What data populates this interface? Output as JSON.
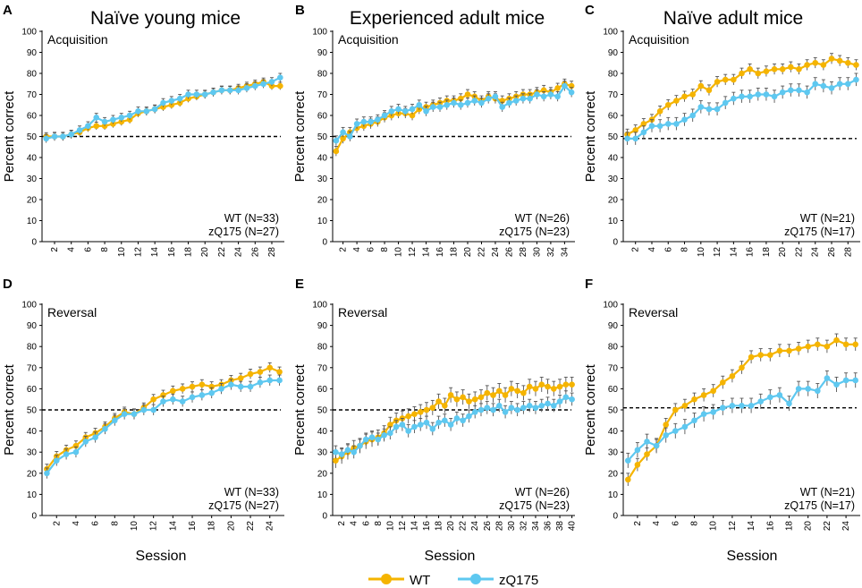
{
  "figure": {
    "column_titles": [
      "Naïve young mice",
      "Experienced adult mice",
      "Naïve adult mice"
    ],
    "xlabel": "Session",
    "legend": [
      {
        "label": "WT",
        "color": "#f5b400"
      },
      {
        "label": "zQ175",
        "color": "#5ec8f0"
      }
    ]
  },
  "colors": {
    "wt": "#f5b400",
    "zq": "#5ec8f0",
    "chance": "#000000"
  },
  "chart_data": [
    {
      "panel": "A",
      "type": "line",
      "phase": "Acquisition",
      "ylabel": "Percent correct",
      "ylim": [
        0,
        100
      ],
      "yticks": [
        0,
        10,
        20,
        30,
        40,
        50,
        60,
        70,
        80,
        90,
        100
      ],
      "xlim": [
        0.5,
        29.5
      ],
      "xticks": [
        2,
        4,
        6,
        8,
        10,
        12,
        14,
        16,
        18,
        20,
        22,
        24,
        26,
        28
      ],
      "chance": 50,
      "legend_text": [
        "WT (N=33)",
        "zQ175 (N=27)"
      ],
      "series": [
        {
          "name": "WT",
          "x": [
            1,
            2,
            3,
            4,
            5,
            6,
            7,
            8,
            9,
            10,
            11,
            12,
            13,
            14,
            15,
            16,
            17,
            18,
            19,
            20,
            21,
            22,
            23,
            24,
            25,
            26,
            27,
            28,
            29
          ],
          "values": [
            50,
            50,
            50,
            51,
            52,
            54,
            55,
            55,
            56,
            57,
            58,
            61,
            62,
            63,
            64,
            65,
            66,
            68,
            69,
            70,
            71,
            72,
            72,
            73,
            74,
            75,
            76,
            74,
            74
          ],
          "err": 1.8
        },
        {
          "name": "zQ175",
          "x": [
            1,
            2,
            3,
            4,
            5,
            6,
            7,
            8,
            9,
            10,
            11,
            12,
            13,
            14,
            15,
            16,
            17,
            18,
            19,
            20,
            21,
            22,
            23,
            24,
            25,
            26,
            27,
            28,
            29
          ],
          "values": [
            49,
            50,
            50,
            51,
            53,
            55,
            59,
            57,
            58,
            59,
            60,
            62,
            62,
            63,
            66,
            67,
            68,
            70,
            70,
            70,
            71,
            72,
            72,
            72,
            73,
            74,
            75,
            76,
            78
          ],
          "err": 2.0
        }
      ]
    },
    {
      "panel": "B",
      "type": "line",
      "phase": "Acquisition",
      "ylabel": "Percent correct",
      "ylim": [
        0,
        100
      ],
      "yticks": [
        0,
        10,
        20,
        30,
        40,
        50,
        60,
        70,
        80,
        90,
        100
      ],
      "xlim": [
        0.5,
        35.5
      ],
      "xticks": [
        2,
        4,
        6,
        8,
        10,
        12,
        14,
        16,
        18,
        20,
        22,
        24,
        26,
        28,
        30,
        32,
        34
      ],
      "chance": 50,
      "legend_text": [
        "WT (N=26)",
        "zQ175 (N=23)"
      ],
      "series": [
        {
          "name": "WT",
          "x": [
            1,
            2,
            3,
            4,
            5,
            6,
            7,
            8,
            9,
            10,
            11,
            12,
            13,
            14,
            15,
            16,
            17,
            18,
            19,
            20,
            21,
            22,
            23,
            24,
            25,
            26,
            27,
            28,
            29,
            30,
            31,
            32,
            33,
            34,
            35
          ],
          "values": [
            43,
            49,
            52,
            54,
            55,
            56,
            57,
            59,
            60,
            61,
            61,
            60,
            63,
            64,
            65,
            66,
            67,
            67,
            68,
            70,
            69,
            67,
            69,
            68,
            67,
            68,
            69,
            70,
            70,
            71,
            72,
            71,
            73,
            75,
            74
          ],
          "err": 2.3
        },
        {
          "name": "zQ175",
          "x": [
            1,
            2,
            3,
            4,
            5,
            6,
            7,
            8,
            9,
            10,
            11,
            12,
            13,
            14,
            15,
            16,
            17,
            18,
            19,
            20,
            21,
            22,
            23,
            24,
            25,
            26,
            27,
            28,
            29,
            30,
            31,
            32,
            33,
            34,
            35
          ],
          "values": [
            48,
            52,
            50,
            56,
            57,
            57,
            58,
            60,
            62,
            63,
            62,
            63,
            65,
            62,
            64,
            64,
            65,
            66,
            65,
            66,
            67,
            66,
            68,
            69,
            64,
            66,
            67,
            68,
            68,
            70,
            69,
            70,
            69,
            74,
            71
          ],
          "err": 2.3
        }
      ]
    },
    {
      "panel": "C",
      "type": "line",
      "phase": "Acquisition",
      "ylabel": "Percent correct",
      "ylim": [
        0,
        100
      ],
      "yticks": [
        0,
        10,
        20,
        30,
        40,
        50,
        60,
        70,
        80,
        90,
        100
      ],
      "xlim": [
        0.5,
        29.5
      ],
      "xticks": [
        2,
        4,
        6,
        8,
        10,
        12,
        14,
        16,
        18,
        20,
        22,
        24,
        26,
        28
      ],
      "chance": 49,
      "legend_text": [
        "WT (N=21)",
        "zQ175 (N=17)"
      ],
      "series": [
        {
          "name": "WT",
          "x": [
            1,
            2,
            3,
            4,
            5,
            6,
            7,
            8,
            9,
            10,
            11,
            12,
            13,
            14,
            15,
            16,
            17,
            18,
            19,
            20,
            21,
            22,
            23,
            24,
            25,
            26,
            27,
            28,
            29
          ],
          "values": [
            51,
            53,
            56,
            58,
            62,
            65,
            67,
            69,
            70,
            74,
            72,
            76,
            77,
            77,
            80,
            82,
            80,
            81,
            82,
            82,
            83,
            82,
            84,
            85,
            84,
            87,
            86,
            85,
            84
          ],
          "err": 2.5
        },
        {
          "name": "zQ175",
          "x": [
            1,
            2,
            3,
            4,
            5,
            6,
            7,
            8,
            9,
            10,
            11,
            12,
            13,
            14,
            15,
            16,
            17,
            18,
            19,
            20,
            21,
            22,
            23,
            24,
            25,
            26,
            27,
            28,
            29
          ],
          "values": [
            49,
            49,
            52,
            55,
            55,
            56,
            56,
            58,
            60,
            64,
            63,
            63,
            66,
            68,
            69,
            69,
            70,
            70,
            69,
            71,
            72,
            72,
            71,
            75,
            74,
            73,
            75,
            75,
            77
          ],
          "err": 3.0
        }
      ]
    },
    {
      "panel": "D",
      "type": "line",
      "phase": "Reversal",
      "ylabel": "Percent correct",
      "ylim": [
        0,
        100
      ],
      "yticks": [
        0,
        10,
        20,
        30,
        40,
        50,
        60,
        70,
        80,
        90,
        100
      ],
      "xlim": [
        0.5,
        25.5
      ],
      "xticks": [
        2,
        4,
        6,
        8,
        10,
        12,
        14,
        16,
        18,
        20,
        22,
        24
      ],
      "chance": 50,
      "legend_text": [
        "WT (N=33)",
        "zQ175 (N=27)"
      ],
      "series": [
        {
          "name": "WT",
          "x": [
            1,
            2,
            3,
            4,
            5,
            6,
            7,
            8,
            9,
            10,
            11,
            12,
            13,
            14,
            15,
            16,
            17,
            18,
            19,
            20,
            21,
            22,
            23,
            24,
            25
          ],
          "values": [
            22,
            28,
            31,
            33,
            37,
            39,
            42,
            46,
            49,
            48,
            51,
            55,
            57,
            59,
            60,
            61,
            62,
            61,
            62,
            64,
            65,
            67,
            68,
            70,
            68
          ],
          "err": 2.3
        },
        {
          "name": "zQ175",
          "x": [
            1,
            2,
            3,
            4,
            5,
            6,
            7,
            8,
            9,
            10,
            11,
            12,
            13,
            14,
            15,
            16,
            17,
            18,
            19,
            20,
            21,
            22,
            23,
            24,
            25
          ],
          "values": [
            20,
            26,
            29,
            30,
            35,
            37,
            41,
            45,
            48,
            48,
            50,
            50,
            54,
            55,
            54,
            56,
            57,
            58,
            60,
            62,
            61,
            61,
            63,
            64,
            64
          ],
          "err": 2.5
        }
      ]
    },
    {
      "panel": "E",
      "type": "line",
      "phase": "Reversal",
      "ylabel": "Percent correct",
      "ylim": [
        0,
        100
      ],
      "yticks": [
        0,
        10,
        20,
        30,
        40,
        50,
        60,
        70,
        80,
        90,
        100
      ],
      "xlim": [
        0.5,
        40.5
      ],
      "xticks": [
        2,
        4,
        6,
        8,
        10,
        12,
        14,
        16,
        18,
        20,
        22,
        24,
        26,
        28,
        30,
        32,
        34,
        36,
        38,
        40
      ],
      "chance": 50,
      "legend_text": [
        "WT (N=26)",
        "zQ175 (N=23)"
      ],
      "series": [
        {
          "name": "WT",
          "x": [
            1,
            2,
            3,
            4,
            5,
            6,
            7,
            8,
            9,
            10,
            11,
            12,
            13,
            14,
            15,
            16,
            17,
            18,
            19,
            20,
            21,
            22,
            23,
            24,
            25,
            26,
            27,
            28,
            29,
            30,
            31,
            32,
            33,
            34,
            35,
            36,
            37,
            38,
            39,
            40
          ],
          "values": [
            26,
            28,
            30,
            32,
            33,
            35,
            36,
            37,
            39,
            43,
            45,
            46,
            47,
            48,
            49,
            50,
            51,
            54,
            52,
            57,
            55,
            56,
            54,
            55,
            56,
            58,
            57,
            59,
            57,
            60,
            59,
            58,
            61,
            60,
            62,
            61,
            60,
            61,
            62,
            62
          ],
          "err": 3.5
        },
        {
          "name": "zQ175",
          "x": [
            1,
            2,
            3,
            4,
            5,
            6,
            7,
            8,
            9,
            10,
            11,
            12,
            13,
            14,
            15,
            16,
            17,
            18,
            19,
            20,
            21,
            22,
            23,
            24,
            25,
            26,
            27,
            28,
            29,
            30,
            31,
            32,
            33,
            34,
            35,
            36,
            37,
            38,
            39,
            40
          ],
          "values": [
            30,
            29,
            31,
            30,
            33,
            36,
            37,
            36,
            38,
            39,
            42,
            43,
            40,
            42,
            43,
            44,
            41,
            44,
            45,
            43,
            46,
            45,
            47,
            49,
            50,
            51,
            50,
            52,
            49,
            51,
            50,
            51,
            52,
            51,
            52,
            53,
            52,
            54,
            56,
            55
          ],
          "err": 3.0
        }
      ]
    },
    {
      "panel": "F",
      "type": "line",
      "phase": "Reversal",
      "ylabel": "Percent correct",
      "ylim": [
        0,
        100
      ],
      "yticks": [
        0,
        10,
        20,
        30,
        40,
        50,
        60,
        70,
        80,
        90,
        100
      ],
      "xlim": [
        0.5,
        25.5
      ],
      "xticks": [
        2,
        4,
        6,
        8,
        10,
        12,
        14,
        16,
        18,
        20,
        22,
        24
      ],
      "chance": 51,
      "legend_text": [
        "WT (N=21)",
        "zQ175 (N=17)"
      ],
      "series": [
        {
          "name": "WT",
          "x": [
            1,
            2,
            3,
            4,
            5,
            6,
            7,
            8,
            9,
            10,
            11,
            12,
            13,
            14,
            15,
            16,
            17,
            18,
            19,
            20,
            21,
            22,
            23,
            24,
            25
          ],
          "values": [
            17,
            24,
            29,
            33,
            43,
            50,
            52,
            55,
            57,
            59,
            63,
            66,
            70,
            75,
            76,
            76,
            78,
            78,
            79,
            80,
            81,
            80,
            83,
            81,
            81
          ],
          "err": 3.0
        },
        {
          "name": "zQ175",
          "x": [
            1,
            2,
            3,
            4,
            5,
            6,
            7,
            8,
            9,
            10,
            11,
            12,
            13,
            14,
            15,
            16,
            17,
            18,
            19,
            20,
            21,
            22,
            23,
            24,
            25
          ],
          "values": [
            26,
            31,
            35,
            33,
            38,
            40,
            42,
            45,
            48,
            49,
            51,
            52,
            52,
            52,
            54,
            56,
            57,
            53,
            60,
            60,
            59,
            65,
            62,
            64,
            64
          ],
          "err": 3.5
        }
      ]
    }
  ]
}
